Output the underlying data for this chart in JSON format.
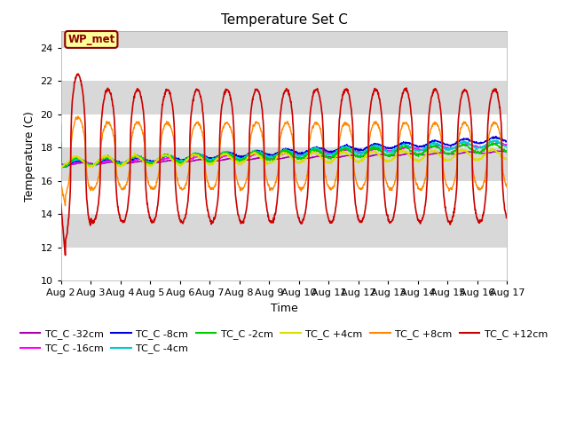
{
  "title": "Temperature Set C",
  "xlabel": "Time",
  "ylabel": "Temperature (C)",
  "ylim": [
    10,
    25
  ],
  "yticks": [
    10,
    12,
    14,
    16,
    18,
    20,
    22,
    24
  ],
  "background_color": "#ffffff",
  "plot_bg_color": "#d8d8d8",
  "legend_label": "WP_met",
  "legend_box_color": "#ffff99",
  "legend_box_edge": "#8B0000",
  "series_order": [
    "TC_C -32cm",
    "TC_C -16cm",
    "TC_C -8cm",
    "TC_C -4cm",
    "TC_C -2cm",
    "TC_C +4cm",
    "TC_C +8cm",
    "TC_C +12cm"
  ],
  "series": {
    "TC_C -32cm": {
      "color": "#aa00aa",
      "linewidth": 1.0
    },
    "TC_C -16cm": {
      "color": "#ff00ff",
      "linewidth": 1.0
    },
    "TC_C -8cm": {
      "color": "#0000dd",
      "linewidth": 1.0
    },
    "TC_C -4cm": {
      "color": "#00cccc",
      "linewidth": 1.0
    },
    "TC_C -2cm": {
      "color": "#00cc00",
      "linewidth": 1.0
    },
    "TC_C +4cm": {
      "color": "#dddd00",
      "linewidth": 1.0
    },
    "TC_C +8cm": {
      "color": "#ff8800",
      "linewidth": 1.0
    },
    "TC_C +12cm": {
      "color": "#cc0000",
      "linewidth": 1.2
    }
  },
  "xticklabels": [
    "Aug 2",
    "Aug 3",
    "Aug 4",
    "Aug 5",
    "Aug 6",
    "Aug 7",
    "Aug 8",
    "Aug 9",
    "Aug 10",
    "Aug 11",
    "Aug 12",
    "Aug 13",
    "Aug 14",
    "Aug 15",
    "Aug 16",
    "Aug 17"
  ]
}
